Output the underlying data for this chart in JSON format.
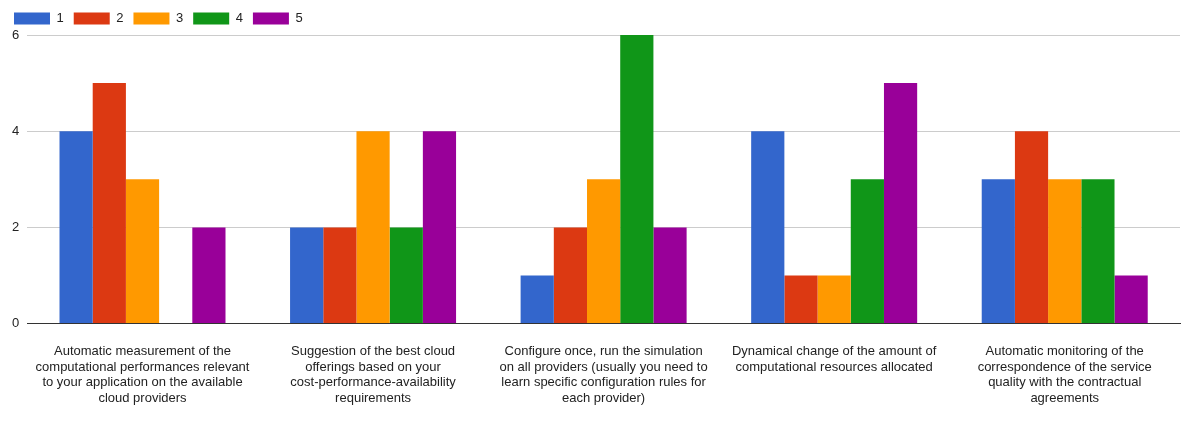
{
  "chart_data": {
    "type": "bar",
    "categories": [
      "Automatic measurement of the computational performances relevant to your application on the available cloud providers",
      "Suggestion of the best cloud offerings based on your cost-performance-availability requirements",
      "Configure once, run the simulation on all providers (usually you need to learn specific configuration rules for each provider)",
      "Dynamical change of the amount of computational resources allocated",
      "Automatic monitoring of the correspondence of the service quality with the contractual agreements"
    ],
    "series": [
      {
        "name": "1",
        "color": "#3366cc",
        "values": [
          4,
          2,
          1,
          4,
          3
        ]
      },
      {
        "name": "2",
        "color": "#dc3912",
        "values": [
          5,
          2,
          2,
          1,
          4
        ]
      },
      {
        "name": "3",
        "color": "#ff9900",
        "values": [
          3,
          4,
          3,
          1,
          3
        ]
      },
      {
        "name": "4",
        "color": "#109618",
        "values": [
          0,
          2,
          6,
          3,
          3
        ]
      },
      {
        "name": "5",
        "color": "#990099",
        "values": [
          2,
          4,
          2,
          5,
          1
        ]
      }
    ],
    "ylim": [
      0,
      6
    ],
    "yticks": [
      0,
      2,
      4,
      6
    ],
    "grid": "y",
    "legend": "top left"
  }
}
